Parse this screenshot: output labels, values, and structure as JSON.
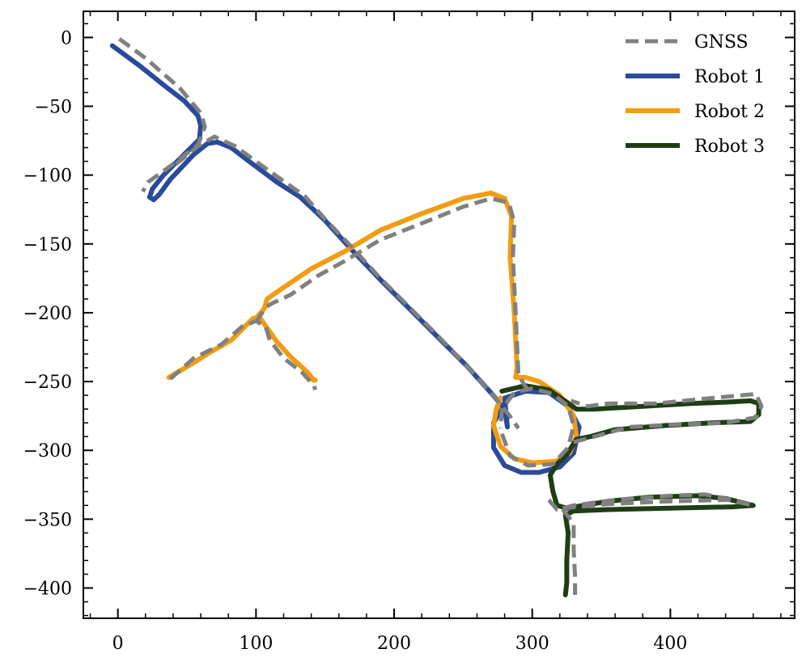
{
  "chart_data": {
    "type": "line",
    "title": "",
    "xlabel": "",
    "ylabel": "",
    "xlim": [
      -25,
      490
    ],
    "ylim": [
      -422,
      19
    ],
    "x_ticks": [
      0,
      100,
      200,
      300,
      400
    ],
    "y_ticks": [
      0,
      -50,
      -100,
      -150,
      -200,
      -250,
      -300,
      -350,
      -400
    ],
    "grid": false,
    "legend_position": "top-right",
    "series": [
      {
        "name": "GNSS",
        "color": "#808080",
        "style": "dashed",
        "segments": [
          [
            [
              1,
              -1
            ],
            [
              20,
              -15
            ],
            [
              45,
              -37
            ],
            [
              60,
              -55
            ],
            [
              63,
              -65
            ],
            [
              58,
              -78
            ],
            [
              40,
              -92
            ],
            [
              22,
              -105
            ],
            [
              18,
              -112
            ]
          ],
          [
            [
              42,
              -92
            ],
            [
              58,
              -79
            ],
            [
              70,
              -72
            ],
            [
              85,
              -79
            ],
            [
              100,
              -90
            ],
            [
              118,
              -103
            ],
            [
              135,
              -115
            ],
            [
              150,
              -132
            ],
            [
              170,
              -153
            ],
            [
              190,
              -175
            ],
            [
              210,
              -195
            ],
            [
              230,
              -215
            ],
            [
              250,
              -236
            ],
            [
              270,
              -258
            ],
            [
              283,
              -274
            ],
            [
              290,
              -284
            ]
          ],
          [
            [
              38,
              -248
            ],
            [
              55,
              -233
            ],
            [
              75,
              -223
            ],
            [
              90,
              -210
            ],
            [
              100,
              -206
            ],
            [
              107,
              -210
            ],
            [
              110,
              -220
            ],
            [
              120,
              -233
            ],
            [
              133,
              -243
            ],
            [
              142,
              -253
            ],
            [
              143,
              -256
            ]
          ],
          [
            [
              100,
              -207
            ],
            [
              107,
              -196
            ],
            [
              112,
              -193
            ],
            [
              125,
              -187
            ],
            [
              145,
              -173
            ],
            [
              165,
              -162
            ],
            [
              190,
              -147
            ],
            [
              220,
              -135
            ],
            [
              250,
              -123
            ],
            [
              270,
              -117
            ],
            [
              283,
              -120
            ],
            [
              287,
              -134
            ],
            [
              286,
              -160
            ],
            [
              288,
              -200
            ],
            [
              290,
              -245
            ],
            [
              294,
              -252
            ],
            [
              298,
              -258
            ]
          ],
          [
            [
              278,
              -288
            ],
            [
              284,
              -304
            ],
            [
              297,
              -311
            ],
            [
              315,
              -310
            ],
            [
              326,
              -298
            ],
            [
              330,
              -282
            ],
            [
              326,
              -268
            ],
            [
              315,
              -259
            ],
            [
              300,
              -255
            ],
            [
              287,
              -258
            ],
            [
              278,
              -270
            ],
            [
              277,
              -284
            ]
          ],
          [
            [
              330,
              -294
            ],
            [
              345,
              -290
            ],
            [
              370,
              -283
            ],
            [
              410,
              -281
            ],
            [
              440,
              -280
            ],
            [
              462,
              -276
            ],
            [
              466,
              -268
            ],
            [
              462,
              -259
            ],
            [
              430,
              -262
            ],
            [
              390,
              -266
            ],
            [
              355,
              -266
            ],
            [
              340,
              -268
            ],
            [
              328,
              -264
            ]
          ],
          [
            [
              312,
              -336
            ],
            [
              318,
              -343
            ],
            [
              330,
              -340
            ],
            [
              360,
              -336
            ],
            [
              400,
              -333
            ],
            [
              425,
              -332
            ],
            [
              440,
              -335
            ],
            [
              460,
              -340
            ]
          ],
          [
            [
              322,
              -342
            ],
            [
              355,
              -339
            ],
            [
              400,
              -337
            ],
            [
              442,
              -336
            ],
            [
              460,
              -340
            ]
          ],
          [
            [
              322,
              -343
            ],
            [
              330,
              -353
            ],
            [
              330,
              -372
            ],
            [
              331,
              -392
            ],
            [
              331,
              -405
            ]
          ]
        ]
      },
      {
        "name": "Robot 1",
        "color": "#2a4a9a",
        "style": "solid",
        "segments": [
          [
            [
              -4,
              -6
            ],
            [
              15,
              -20
            ],
            [
              35,
              -36
            ],
            [
              48,
              -46
            ],
            [
              58,
              -57
            ],
            [
              60,
              -64
            ],
            [
              59,
              -74
            ],
            [
              47,
              -86
            ],
            [
              33,
              -100
            ],
            [
              25,
              -110
            ],
            [
              23,
              -116
            ],
            [
              26,
              -118
            ],
            [
              30,
              -114
            ],
            [
              38,
              -103
            ],
            [
              55,
              -85
            ],
            [
              65,
              -77
            ],
            [
              72,
              -76
            ],
            [
              82,
              -80
            ],
            [
              95,
              -90
            ],
            [
              115,
              -105
            ],
            [
              132,
              -116
            ],
            [
              150,
              -133
            ],
            [
              170,
              -155
            ],
            [
              192,
              -178
            ],
            [
              212,
              -198
            ],
            [
              232,
              -218
            ],
            [
              252,
              -238
            ],
            [
              270,
              -258
            ],
            [
              280,
              -270
            ],
            [
              282,
              -283
            ],
            [
              280,
              -262
            ],
            [
              295,
              -257
            ],
            [
              312,
              -258
            ],
            [
              326,
              -268
            ],
            [
              334,
              -283
            ],
            [
              330,
              -302
            ],
            [
              320,
              -312
            ],
            [
              305,
              -316
            ],
            [
              292,
              -316
            ],
            [
              280,
              -311
            ],
            [
              272,
              -298
            ],
            [
              272,
              -280
            ],
            [
              278,
              -270
            ],
            [
              282,
              -262
            ]
          ]
        ]
      },
      {
        "name": "Robot 2",
        "color": "#f39c12",
        "style": "solid",
        "segments": [
          [
            [
              37,
              -247
            ],
            [
              52,
              -238
            ],
            [
              68,
              -228
            ],
            [
              82,
              -220
            ],
            [
              92,
              -210
            ],
            [
              98,
              -204
            ],
            [
              103,
              -204
            ],
            [
              108,
              -211
            ],
            [
              115,
              -221
            ],
            [
              125,
              -232
            ],
            [
              137,
              -243
            ],
            [
              142,
              -249
            ],
            [
              138,
              -247
            ],
            [
              143,
              -249
            ]
          ],
          [
            [
              100,
              -204
            ],
            [
              106,
              -197
            ],
            [
              108,
              -190
            ],
            [
              115,
              -185
            ],
            [
              140,
              -168
            ],
            [
              165,
              -155
            ],
            [
              190,
              -140
            ],
            [
              220,
              -128
            ],
            [
              250,
              -117
            ],
            [
              270,
              -113
            ],
            [
              280,
              -117
            ],
            [
              285,
              -130
            ],
            [
              284,
              -160
            ],
            [
              287,
              -200
            ],
            [
              289,
              -240
            ],
            [
              288,
              -247
            ],
            [
              295,
              -247
            ],
            [
              305,
              -250
            ],
            [
              320,
              -260
            ],
            [
              330,
              -275
            ],
            [
              332,
              -290
            ],
            [
              327,
              -302
            ],
            [
              317,
              -308
            ],
            [
              300,
              -309
            ],
            [
              287,
              -306
            ],
            [
              277,
              -297
            ],
            [
              272,
              -282
            ],
            [
              274,
              -270
            ],
            [
              277,
              -262
            ]
          ]
        ]
      },
      {
        "name": "Robot 3",
        "color": "#1e3d14",
        "style": "solid",
        "segments": [
          [
            [
              278,
              -257
            ],
            [
              295,
              -253
            ],
            [
              312,
              -256
            ],
            [
              325,
              -265
            ],
            [
              332,
              -270
            ],
            [
              345,
              -270
            ],
            [
              380,
              -268
            ],
            [
              415,
              -266
            ],
            [
              440,
              -265
            ],
            [
              458,
              -264
            ],
            [
              464,
              -266
            ],
            [
              464,
              -274
            ],
            [
              458,
              -279
            ],
            [
              430,
              -280
            ],
            [
              395,
              -282
            ],
            [
              360,
              -285
            ],
            [
              342,
              -290
            ],
            [
              332,
              -292
            ],
            [
              325,
              -303
            ],
            [
              318,
              -310
            ],
            [
              313,
              -318
            ],
            [
              315,
              -330
            ],
            [
              318,
              -340
            ],
            [
              325,
              -342
            ],
            [
              355,
              -337
            ],
            [
              385,
              -334
            ],
            [
              420,
              -333
            ],
            [
              440,
              -335
            ],
            [
              460,
              -340
            ],
            [
              445,
              -341
            ],
            [
              400,
              -342
            ],
            [
              355,
              -343
            ],
            [
              330,
              -344
            ],
            [
              324,
              -347
            ],
            [
              326,
              -360
            ],
            [
              325,
              -380
            ],
            [
              325,
              -396
            ],
            [
              324,
              -405
            ]
          ]
        ]
      }
    ]
  }
}
